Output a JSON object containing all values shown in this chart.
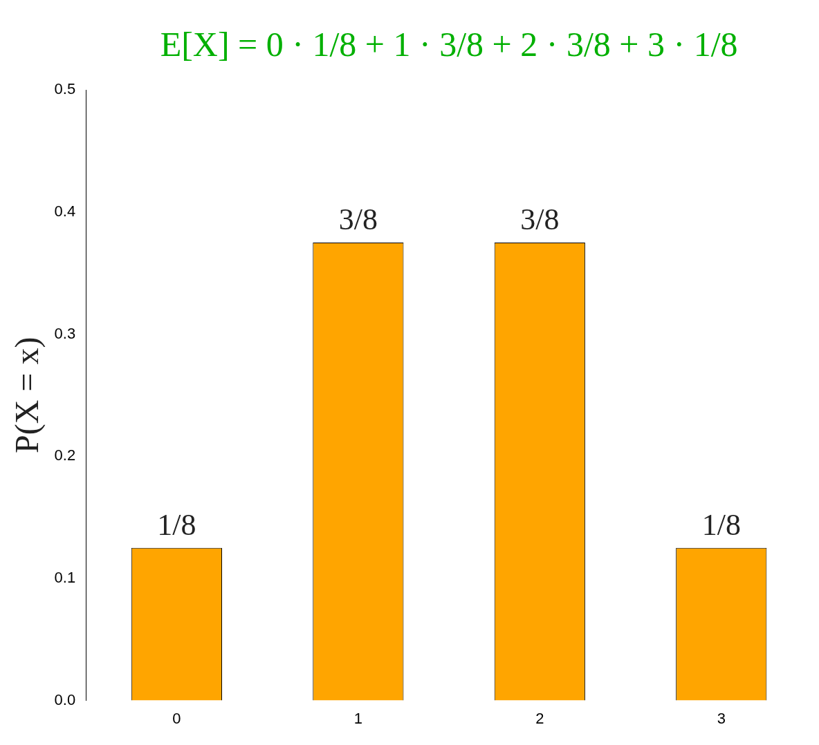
{
  "chart_data": {
    "type": "bar",
    "title": "E[X] = 0 · 1/8 + 1 · 3/8 + 2 · 3/8 + 3 · 1/8",
    "ylabel": "P(X = x)",
    "categories": [
      "0",
      "1",
      "2",
      "3"
    ],
    "values": [
      0.125,
      0.375,
      0.375,
      0.125
    ],
    "value_labels": [
      "1/8",
      "3/8",
      "3/8",
      "1/8"
    ],
    "color": "#ffa500",
    "ylim": [
      0,
      0.5
    ],
    "yticks": [
      {
        "value": 0,
        "label": "0.0"
      },
      0.1,
      0.2,
      0.3,
      0.4,
      0.5
    ],
    "grid": false,
    "legend": false
  }
}
